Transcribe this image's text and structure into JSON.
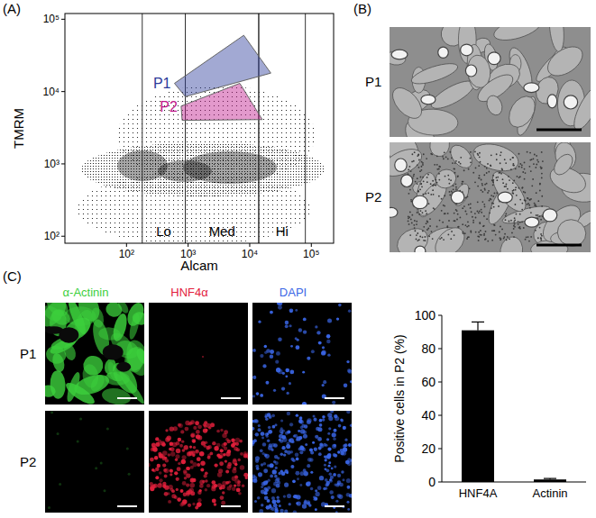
{
  "panel_labels": [
    "(A)",
    "(B)",
    "(C)"
  ],
  "chart_data": [
    {
      "type": "scatter",
      "log": true,
      "x_label": "Alcam",
      "y_label": "TMRM",
      "xlim": [
        10,
        230000
      ],
      "ylim": [
        80,
        120000
      ],
      "xticks": [
        {
          "value": 100,
          "label": "10²"
        },
        {
          "value": 1000,
          "label": "10³"
        },
        {
          "value": 10000,
          "label": "10⁴"
        },
        {
          "value": 100000,
          "label": "10⁵"
        }
      ],
      "yticks": [
        {
          "value": 100,
          "label": "10²"
        },
        {
          "value": 1000,
          "label": "10³"
        },
        {
          "value": 10000,
          "label": "10⁴"
        },
        {
          "value": 100000,
          "label": "10⁵"
        }
      ],
      "gates": [
        {
          "name": "Lo",
          "range": [
            180,
            900
          ]
        },
        {
          "name": "Med",
          "range": [
            900,
            14000
          ]
        },
        {
          "name": "Hi",
          "range": [
            14000,
            80000
          ]
        }
      ],
      "polygons": [
        {
          "name": "P1",
          "color": "#2b3a9a",
          "vertices": [
            [
              600,
              13000
            ],
            [
              8000,
              60000
            ],
            [
              22000,
              18000
            ],
            [
              900,
              8500
            ]
          ]
        },
        {
          "name": "P2",
          "color": "#c0168a",
          "vertices": [
            [
              770,
              6300
            ],
            [
              6900,
              13000
            ],
            [
              16000,
              4100
            ],
            [
              800,
              4000
            ]
          ]
        }
      ]
    },
    {
      "type": "bar",
      "categories": [
        "HNF4A",
        "Actinin"
      ],
      "values": [
        91,
        1.5
      ],
      "errors": [
        5,
        0.6
      ],
      "color": "#000000",
      "ylim": [
        0,
        100
      ],
      "yticks": [
        0,
        20,
        40,
        60,
        80,
        100
      ],
      "y_label": "Positive cells in P2 (%)"
    }
  ],
  "images": {
    "B": {
      "rows": [
        "P1",
        "P2"
      ]
    },
    "C": {
      "rows": [
        "P1",
        "P2"
      ],
      "columns": [
        {
          "label": "α-Actinin",
          "color": "#3ccf3c"
        },
        {
          "label": "HNF4α",
          "color": "#e3203c"
        },
        {
          "label": "DAPI",
          "color": "#3a66e6"
        }
      ]
    }
  }
}
